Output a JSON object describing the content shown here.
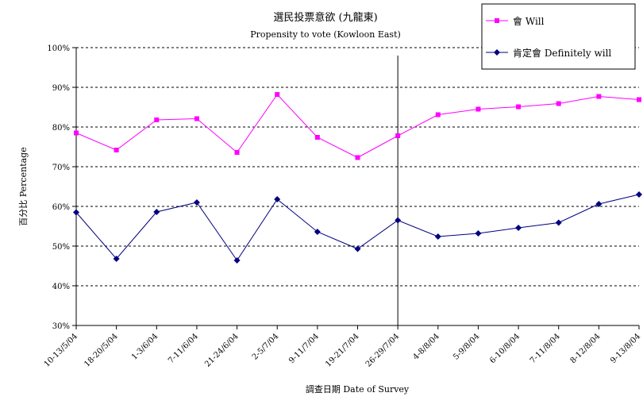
{
  "chart_data": {
    "type": "line",
    "title": "選民投票意欲 (九龍東)",
    "subtitle": "Propensity to vote (Kowloon East)",
    "xlabel": "調查日期 Date of Survey",
    "ylabel": "百分比 Percentage",
    "ylim": [
      30,
      100
    ],
    "yticks": [
      "30%",
      "40%",
      "50%",
      "60%",
      "70%",
      "80%",
      "90%",
      "100%"
    ],
    "grid": "horizontal-dashed",
    "legend_position": "top-right",
    "categories": [
      "10-13/5/04",
      "18-20/5/04",
      "1-3/6/04",
      "7-11/6/04",
      "21-24/6/04",
      "2-5/7/04",
      "9-11/7/04",
      "19-21/7/04",
      "26-29/7/04",
      "4-8/8/04",
      "5-9/8/04",
      "6-10/8/04",
      "7-11/8/04",
      "8-12/8/04",
      "9-13/8/04"
    ],
    "divider_after_category": "26-29/7/04",
    "series": [
      {
        "name": "會 Will",
        "color": "#ff00ff",
        "marker": "square",
        "values": [
          78.5,
          74.2,
          81.8,
          82.1,
          73.6,
          88.2,
          77.4,
          72.3,
          77.8,
          83.1,
          84.5,
          85.1,
          85.9,
          87.7,
          86.9
        ]
      },
      {
        "name": "肯定會 Definitely will",
        "color": "#000080",
        "marker": "diamond",
        "values": [
          58.5,
          46.8,
          58.6,
          61.0,
          46.4,
          61.8,
          53.6,
          49.3,
          56.5,
          52.4,
          53.2,
          54.6,
          55.9,
          60.6,
          63.0
        ]
      }
    ]
  }
}
